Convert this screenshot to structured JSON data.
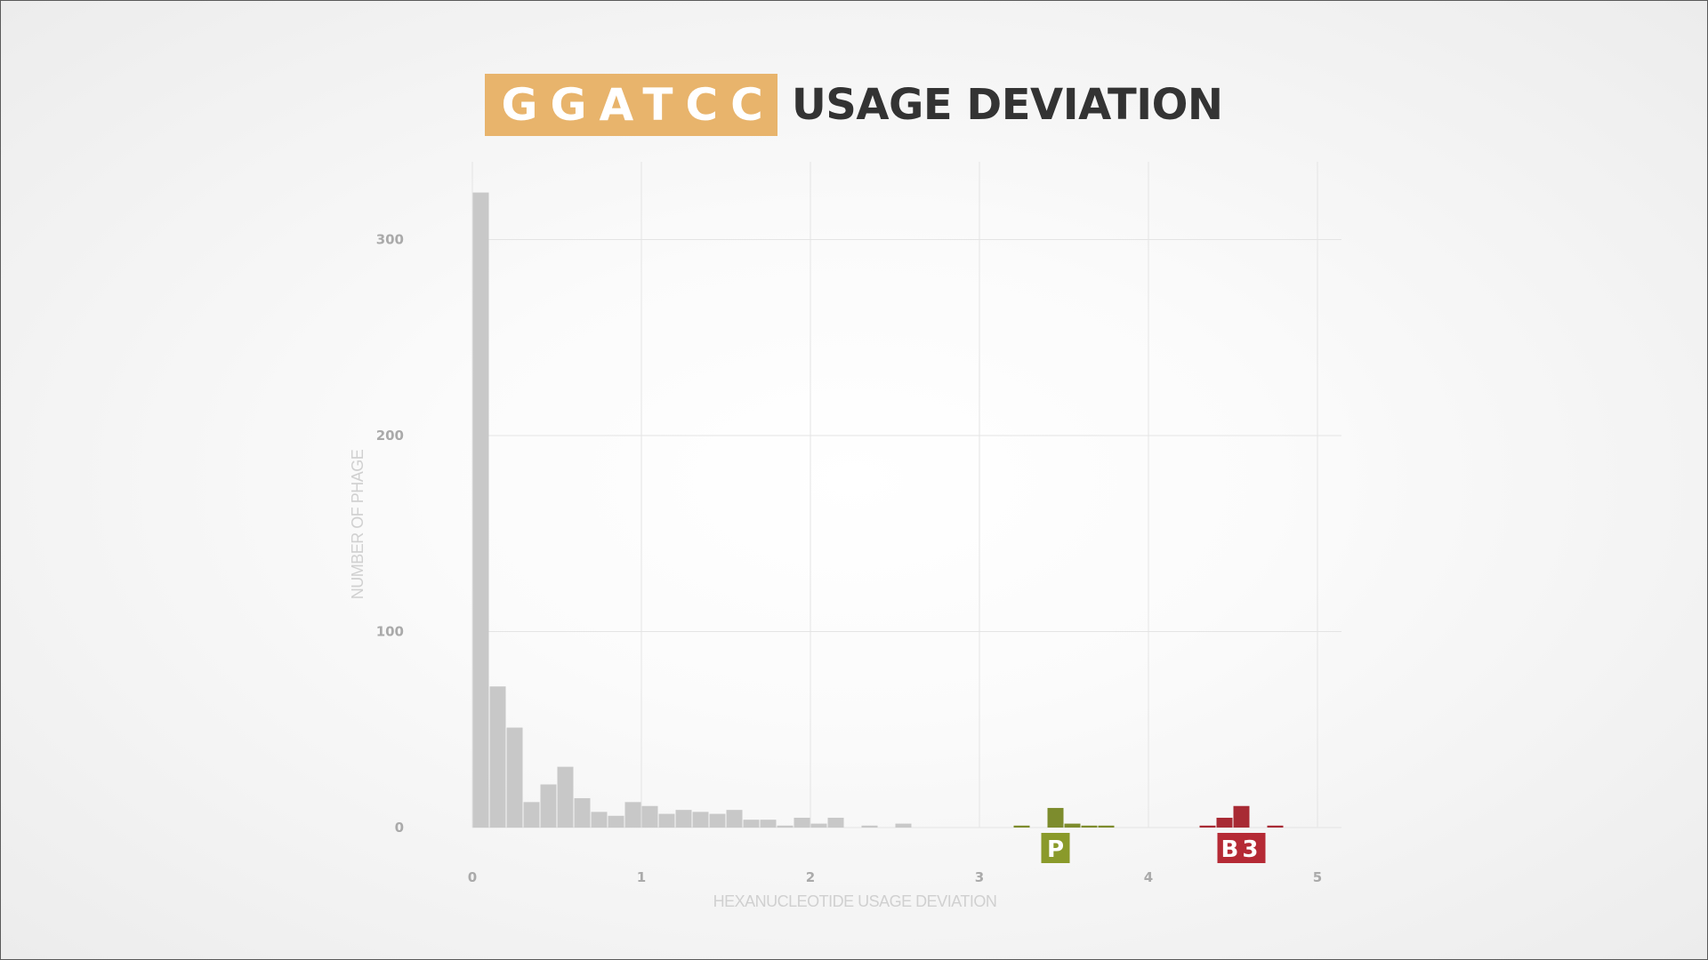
{
  "title": {
    "motif": "GGATCC",
    "text": "USAGE DEVIATION"
  },
  "colors": {
    "motif_bg": "#e8b46c",
    "title_text": "#333333",
    "bars_default": "#c8c8c8",
    "cluster_P": "#7d8c2d",
    "cluster_P_label": "#8a9a2a",
    "cluster_B3": "#a82a34",
    "cluster_B3_label": "#b52a35",
    "grid": "#e4e4e4",
    "tick_label": "#aaaaaa",
    "axis_label": "#d0d0d0"
  },
  "chart_data": {
    "type": "bar",
    "xlabel": "HEXANUCLEOTIDE USAGE DEVIATION",
    "ylabel": "NUMBER OF PHAGE",
    "xlim": [
      0,
      5.15
    ],
    "ylim": [
      0,
      325
    ],
    "xticks": [
      "0",
      "1",
      "2",
      "3",
      "4",
      "5"
    ],
    "yticks": [
      "0",
      "100",
      "200",
      "300"
    ],
    "bin_width": 0.1,
    "grid": true,
    "series": [
      {
        "bins": [
          {
            "x": 0.0,
            "count": 324
          },
          {
            "x": 0.1,
            "count": 72
          },
          {
            "x": 0.2,
            "count": 51
          },
          {
            "x": 0.3,
            "count": 13
          },
          {
            "x": 0.4,
            "count": 22
          },
          {
            "x": 0.5,
            "count": 31
          },
          {
            "x": 0.6,
            "count": 15
          },
          {
            "x": 0.7,
            "count": 8
          },
          {
            "x": 0.8,
            "count": 6
          },
          {
            "x": 0.9,
            "count": 13
          },
          {
            "x": 1.0,
            "count": 11
          },
          {
            "x": 1.1,
            "count": 7
          },
          {
            "x": 1.2,
            "count": 9
          },
          {
            "x": 1.3,
            "count": 8
          },
          {
            "x": 1.4,
            "count": 7
          },
          {
            "x": 1.5,
            "count": 9
          },
          {
            "x": 1.6,
            "count": 4
          },
          {
            "x": 1.7,
            "count": 4
          },
          {
            "x": 1.8,
            "count": 1
          },
          {
            "x": 1.9,
            "count": 5
          },
          {
            "x": 2.0,
            "count": 2
          },
          {
            "x": 2.1,
            "count": 5
          },
          {
            "x": 2.3,
            "count": 1
          },
          {
            "x": 2.5,
            "count": 2
          }
        ]
      },
      {
        "name": "P",
        "bins": [
          {
            "x": 3.2,
            "count": 1
          },
          {
            "x": 3.4,
            "count": 10
          },
          {
            "x": 3.5,
            "count": 2
          },
          {
            "x": 3.6,
            "count": 1
          },
          {
            "x": 3.7,
            "count": 1
          }
        ]
      },
      {
        "name": "B3",
        "bins": [
          {
            "x": 4.3,
            "count": 1
          },
          {
            "x": 4.4,
            "count": 5
          },
          {
            "x": 4.5,
            "count": 11
          },
          {
            "x": 4.7,
            "count": 1
          }
        ]
      }
    ],
    "cluster_labels": [
      {
        "text": "P",
        "x": 3.45
      },
      {
        "text": "B3",
        "x": 4.55
      }
    ]
  }
}
